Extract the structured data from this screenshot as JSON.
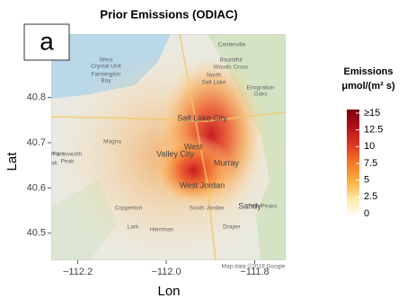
{
  "chart_data": {
    "type": "heatmap",
    "title": "Prior Emissions (ODIAC)",
    "panel_label": "a",
    "x_label": "Lon",
    "y_label": "Lat",
    "xlim": [
      -112.26,
      -111.73
    ],
    "ylim": [
      40.44,
      40.94
    ],
    "xticks": [
      {
        "value": -112.2,
        "label": "−112.2"
      },
      {
        "value": -112.0,
        "label": "−112.0"
      },
      {
        "value": -111.8,
        "label": "−111.8"
      }
    ],
    "yticks": [
      40.5,
      40.6,
      40.7,
      40.8
    ],
    "colorbar": {
      "title": [
        "Emissions",
        "μmol/(m² s)"
      ],
      "lim": [
        0,
        15
      ],
      "colors": [
        "#ffffff",
        "#fde9a8",
        "#fbb040",
        "#f47a2a",
        "#e03a22",
        "#b3121c",
        "#7a0010"
      ],
      "ticks": [
        {
          "value": 15,
          "label": "≥15"
        },
        12.5,
        10,
        7.5,
        5,
        2.5,
        0
      ]
    },
    "map_labels": [
      "Centerville",
      "Bountiful",
      "Woods Cross",
      "North",
      "Salt Lake",
      "West",
      "Crystal Unit",
      "Farmington",
      "Bay",
      "Salt Lake City",
      "Emigration",
      "Oaks",
      "Magna",
      "West",
      "Valley City",
      "Point",
      "ak",
      "Farnsworth",
      "Peak",
      "Murray",
      "West Jordan",
      "Sandy",
      "South Jordan",
      "Copperton",
      "Twin Peaks",
      "Lark",
      "Herriman",
      "Draper",
      "Map data ©2019 Google"
    ]
  }
}
